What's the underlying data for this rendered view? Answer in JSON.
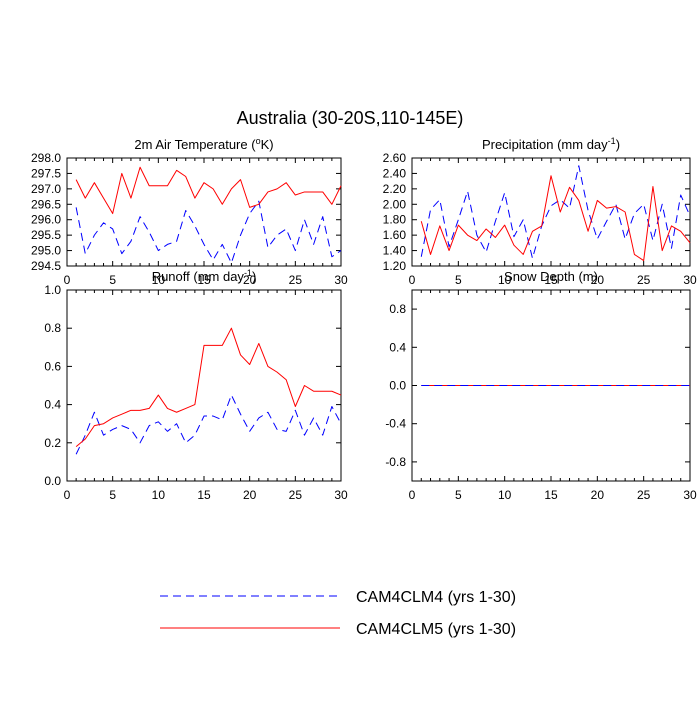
{
  "figure": {
    "title": "Australia (30-20S,110-145E)"
  },
  "legend": {
    "placement": "bottom-center",
    "entries": [
      {
        "name": "CAM4CLM4",
        "label": "CAM4CLM4 (yrs 1-30)",
        "color": "#0000ff",
        "dash": "dashed"
      },
      {
        "name": "CAM4CLM5",
        "label": "CAM4CLM5 (yrs 1-30)",
        "color": "#ff0000",
        "dash": "solid"
      }
    ]
  },
  "chart_data": [
    {
      "type": "line",
      "title": "2m Air Temperature (",
      "title_sup": "o",
      "title_tail": "K)",
      "xlim": [
        0,
        30
      ],
      "ylim": [
        294.5,
        298.0
      ],
      "xticks": [
        "0",
        "5",
        "10",
        "15",
        "20",
        "25",
        "30"
      ],
      "yticks": [
        "294.5",
        "295.0",
        "295.5",
        "296.0",
        "296.5",
        "297.0",
        "297.5",
        "298.0"
      ],
      "ytick_values": [
        294.5,
        295.0,
        295.5,
        296.0,
        296.5,
        297.0,
        297.5,
        298.0
      ],
      "x": [
        1,
        2,
        3,
        4,
        5,
        6,
        7,
        8,
        9,
        10,
        11,
        12,
        13,
        14,
        15,
        16,
        17,
        18,
        19,
        20,
        21,
        22,
        23,
        24,
        25,
        26,
        27,
        28,
        29,
        30
      ],
      "series": [
        {
          "name": "CAM4CLM4",
          "values": [
            296.4,
            294.9,
            295.5,
            295.9,
            295.7,
            294.9,
            295.3,
            296.1,
            295.6,
            295.0,
            295.2,
            295.3,
            296.3,
            295.8,
            295.2,
            294.7,
            295.2,
            294.6,
            295.5,
            296.2,
            296.6,
            295.1,
            295.5,
            295.7,
            295.0,
            296.0,
            295.2,
            296.1,
            294.8,
            295.0
          ]
        },
        {
          "name": "CAM4CLM5",
          "values": [
            297.3,
            296.7,
            297.2,
            296.7,
            296.2,
            297.5,
            296.7,
            297.7,
            297.1,
            297.1,
            297.1,
            297.6,
            297.4,
            296.7,
            297.2,
            297.0,
            296.5,
            297.0,
            297.3,
            296.4,
            296.5,
            296.9,
            297.0,
            297.2,
            296.8,
            296.9,
            296.9,
            296.9,
            296.5,
            297.1
          ]
        }
      ]
    },
    {
      "type": "line",
      "title": "Precipitation (mm day",
      "title_sup": "-1",
      "title_tail": ")",
      "xlim": [
        0,
        30
      ],
      "ylim": [
        1.2,
        2.6
      ],
      "xticks": [
        "0",
        "5",
        "10",
        "15",
        "20",
        "25",
        "30"
      ],
      "yticks": [
        "1.20",
        "1.40",
        "1.60",
        "1.80",
        "2.00",
        "2.20",
        "2.40",
        "2.60"
      ],
      "ytick_values": [
        1.2,
        1.4,
        1.6,
        1.8,
        2.0,
        2.2,
        2.4,
        2.6
      ],
      "x": [
        1,
        2,
        3,
        4,
        5,
        6,
        7,
        8,
        9,
        10,
        11,
        12,
        13,
        14,
        15,
        16,
        17,
        18,
        19,
        20,
        21,
        22,
        23,
        24,
        25,
        26,
        27,
        28,
        29,
        30
      ],
      "series": [
        {
          "name": "CAM4CLM4",
          "values": [
            1.32,
            1.93,
            2.06,
            1.45,
            1.8,
            2.17,
            1.6,
            1.38,
            1.78,
            2.15,
            1.58,
            1.8,
            1.3,
            1.72,
            1.98,
            2.06,
            1.95,
            2.5,
            1.92,
            1.55,
            1.78,
            2.0,
            1.55,
            1.88,
            2.0,
            1.53,
            2.0,
            1.43,
            2.12,
            1.85
          ]
        },
        {
          "name": "CAM4CLM5",
          "values": [
            1.78,
            1.35,
            1.72,
            1.4,
            1.73,
            1.6,
            1.53,
            1.68,
            1.57,
            1.73,
            1.47,
            1.35,
            1.65,
            1.72,
            2.37,
            1.9,
            2.22,
            2.05,
            1.65,
            2.05,
            1.95,
            1.97,
            1.9,
            1.35,
            1.27,
            2.23,
            1.4,
            1.72,
            1.65,
            1.5
          ]
        }
      ]
    },
    {
      "type": "line",
      "title": "Runoff (mm day",
      "title_sup": "-1",
      "title_tail": ")",
      "xlim": [
        0,
        30
      ],
      "ylim": [
        0.0,
        1.0
      ],
      "xticks": [
        "0",
        "5",
        "10",
        "15",
        "20",
        "25",
        "30"
      ],
      "yticks": [
        "0.0",
        "0.2",
        "0.4",
        "0.6",
        "0.8",
        "1.0"
      ],
      "ytick_values": [
        0.0,
        0.2,
        0.4,
        0.6,
        0.8,
        1.0
      ],
      "x": [
        1,
        2,
        3,
        4,
        5,
        6,
        7,
        8,
        9,
        10,
        11,
        12,
        13,
        14,
        15,
        16,
        17,
        18,
        19,
        20,
        21,
        22,
        23,
        24,
        25,
        26,
        27,
        28,
        29,
        30
      ],
      "series": [
        {
          "name": "CAM4CLM4",
          "values": [
            0.14,
            0.24,
            0.36,
            0.24,
            0.27,
            0.29,
            0.27,
            0.2,
            0.29,
            0.31,
            0.26,
            0.3,
            0.2,
            0.24,
            0.34,
            0.34,
            0.32,
            0.45,
            0.35,
            0.26,
            0.33,
            0.36,
            0.27,
            0.26,
            0.37,
            0.24,
            0.33,
            0.24,
            0.39,
            0.3
          ]
        },
        {
          "name": "CAM4CLM5",
          "values": [
            0.18,
            0.22,
            0.29,
            0.3,
            0.33,
            0.35,
            0.37,
            0.37,
            0.38,
            0.45,
            0.38,
            0.36,
            0.38,
            0.4,
            0.71,
            0.71,
            0.71,
            0.8,
            0.66,
            0.61,
            0.72,
            0.6,
            0.57,
            0.53,
            0.39,
            0.5,
            0.47,
            0.47,
            0.47,
            0.45
          ]
        }
      ]
    },
    {
      "type": "line",
      "title": "Snow Depth (m)",
      "title_sup": "",
      "title_tail": "",
      "xlim": [
        0,
        30
      ],
      "ylim": [
        -1.0,
        1.0
      ],
      "xticks": [
        "0",
        "5",
        "10",
        "15",
        "20",
        "25",
        "30"
      ],
      "yticks": [
        "-0.8",
        "-0.4",
        "0.0",
        "0.4",
        "0.8"
      ],
      "ytick_values": [
        -0.8,
        -0.4,
        0.0,
        0.4,
        0.8
      ],
      "x": [
        1,
        2,
        3,
        4,
        5,
        6,
        7,
        8,
        9,
        10,
        11,
        12,
        13,
        14,
        15,
        16,
        17,
        18,
        19,
        20,
        21,
        22,
        23,
        24,
        25,
        26,
        27,
        28,
        29,
        30
      ],
      "series": [
        {
          "name": "CAM4CLM4",
          "values": [
            0,
            0,
            0,
            0,
            0,
            0,
            0,
            0,
            0,
            0,
            0,
            0,
            0,
            0,
            0,
            0,
            0,
            0,
            0,
            0,
            0,
            0,
            0,
            0,
            0,
            0,
            0,
            0,
            0,
            0
          ]
        },
        {
          "name": "CAM4CLM5",
          "values": [
            0,
            0,
            0,
            0,
            0,
            0,
            0,
            0,
            0,
            0,
            0,
            0,
            0,
            0,
            0,
            0,
            0,
            0,
            0,
            0,
            0,
            0,
            0,
            0,
            0,
            0,
            0,
            0,
            0,
            0
          ]
        }
      ]
    }
  ]
}
